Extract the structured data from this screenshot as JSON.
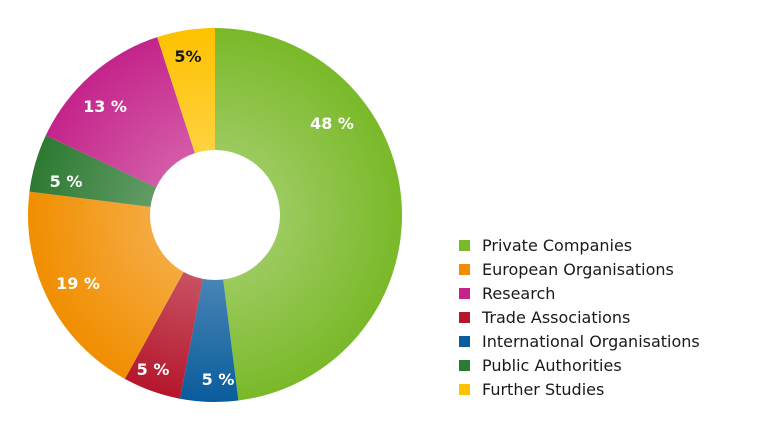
{
  "chart_data": {
    "type": "pie",
    "donut": true,
    "categories": [
      "Private Companies",
      "International Organisations",
      "Trade Associations",
      "European Organisations",
      "Public Authorities",
      "Research",
      "Further Studies"
    ],
    "values": [
      48,
      5,
      5,
      19,
      5,
      13,
      5
    ],
    "data_labels": [
      "48 %",
      "5 %",
      "5 %",
      "19 %",
      "5 %",
      "13 %",
      "5%"
    ],
    "colors": [
      "#7ab929",
      "#0a5c9c",
      "#b5172d",
      "#f18e00",
      "#2d7a32",
      "#c4248a",
      "#fec200"
    ],
    "legend": {
      "placement": "right",
      "items": [
        {
          "label": "Private Companies",
          "color": "#7ab929"
        },
        {
          "label": "European Organisations",
          "color": "#f18e00"
        },
        {
          "label": "Research",
          "color": "#c4248a"
        },
        {
          "label": "Trade Associations",
          "color": "#b5172d"
        },
        {
          "label": "International Organisations",
          "color": "#0a5c9c"
        },
        {
          "label": "Public Authorities",
          "color": "#2d7a32"
        },
        {
          "label": "Further Studies",
          "color": "#fec200"
        }
      ]
    }
  }
}
